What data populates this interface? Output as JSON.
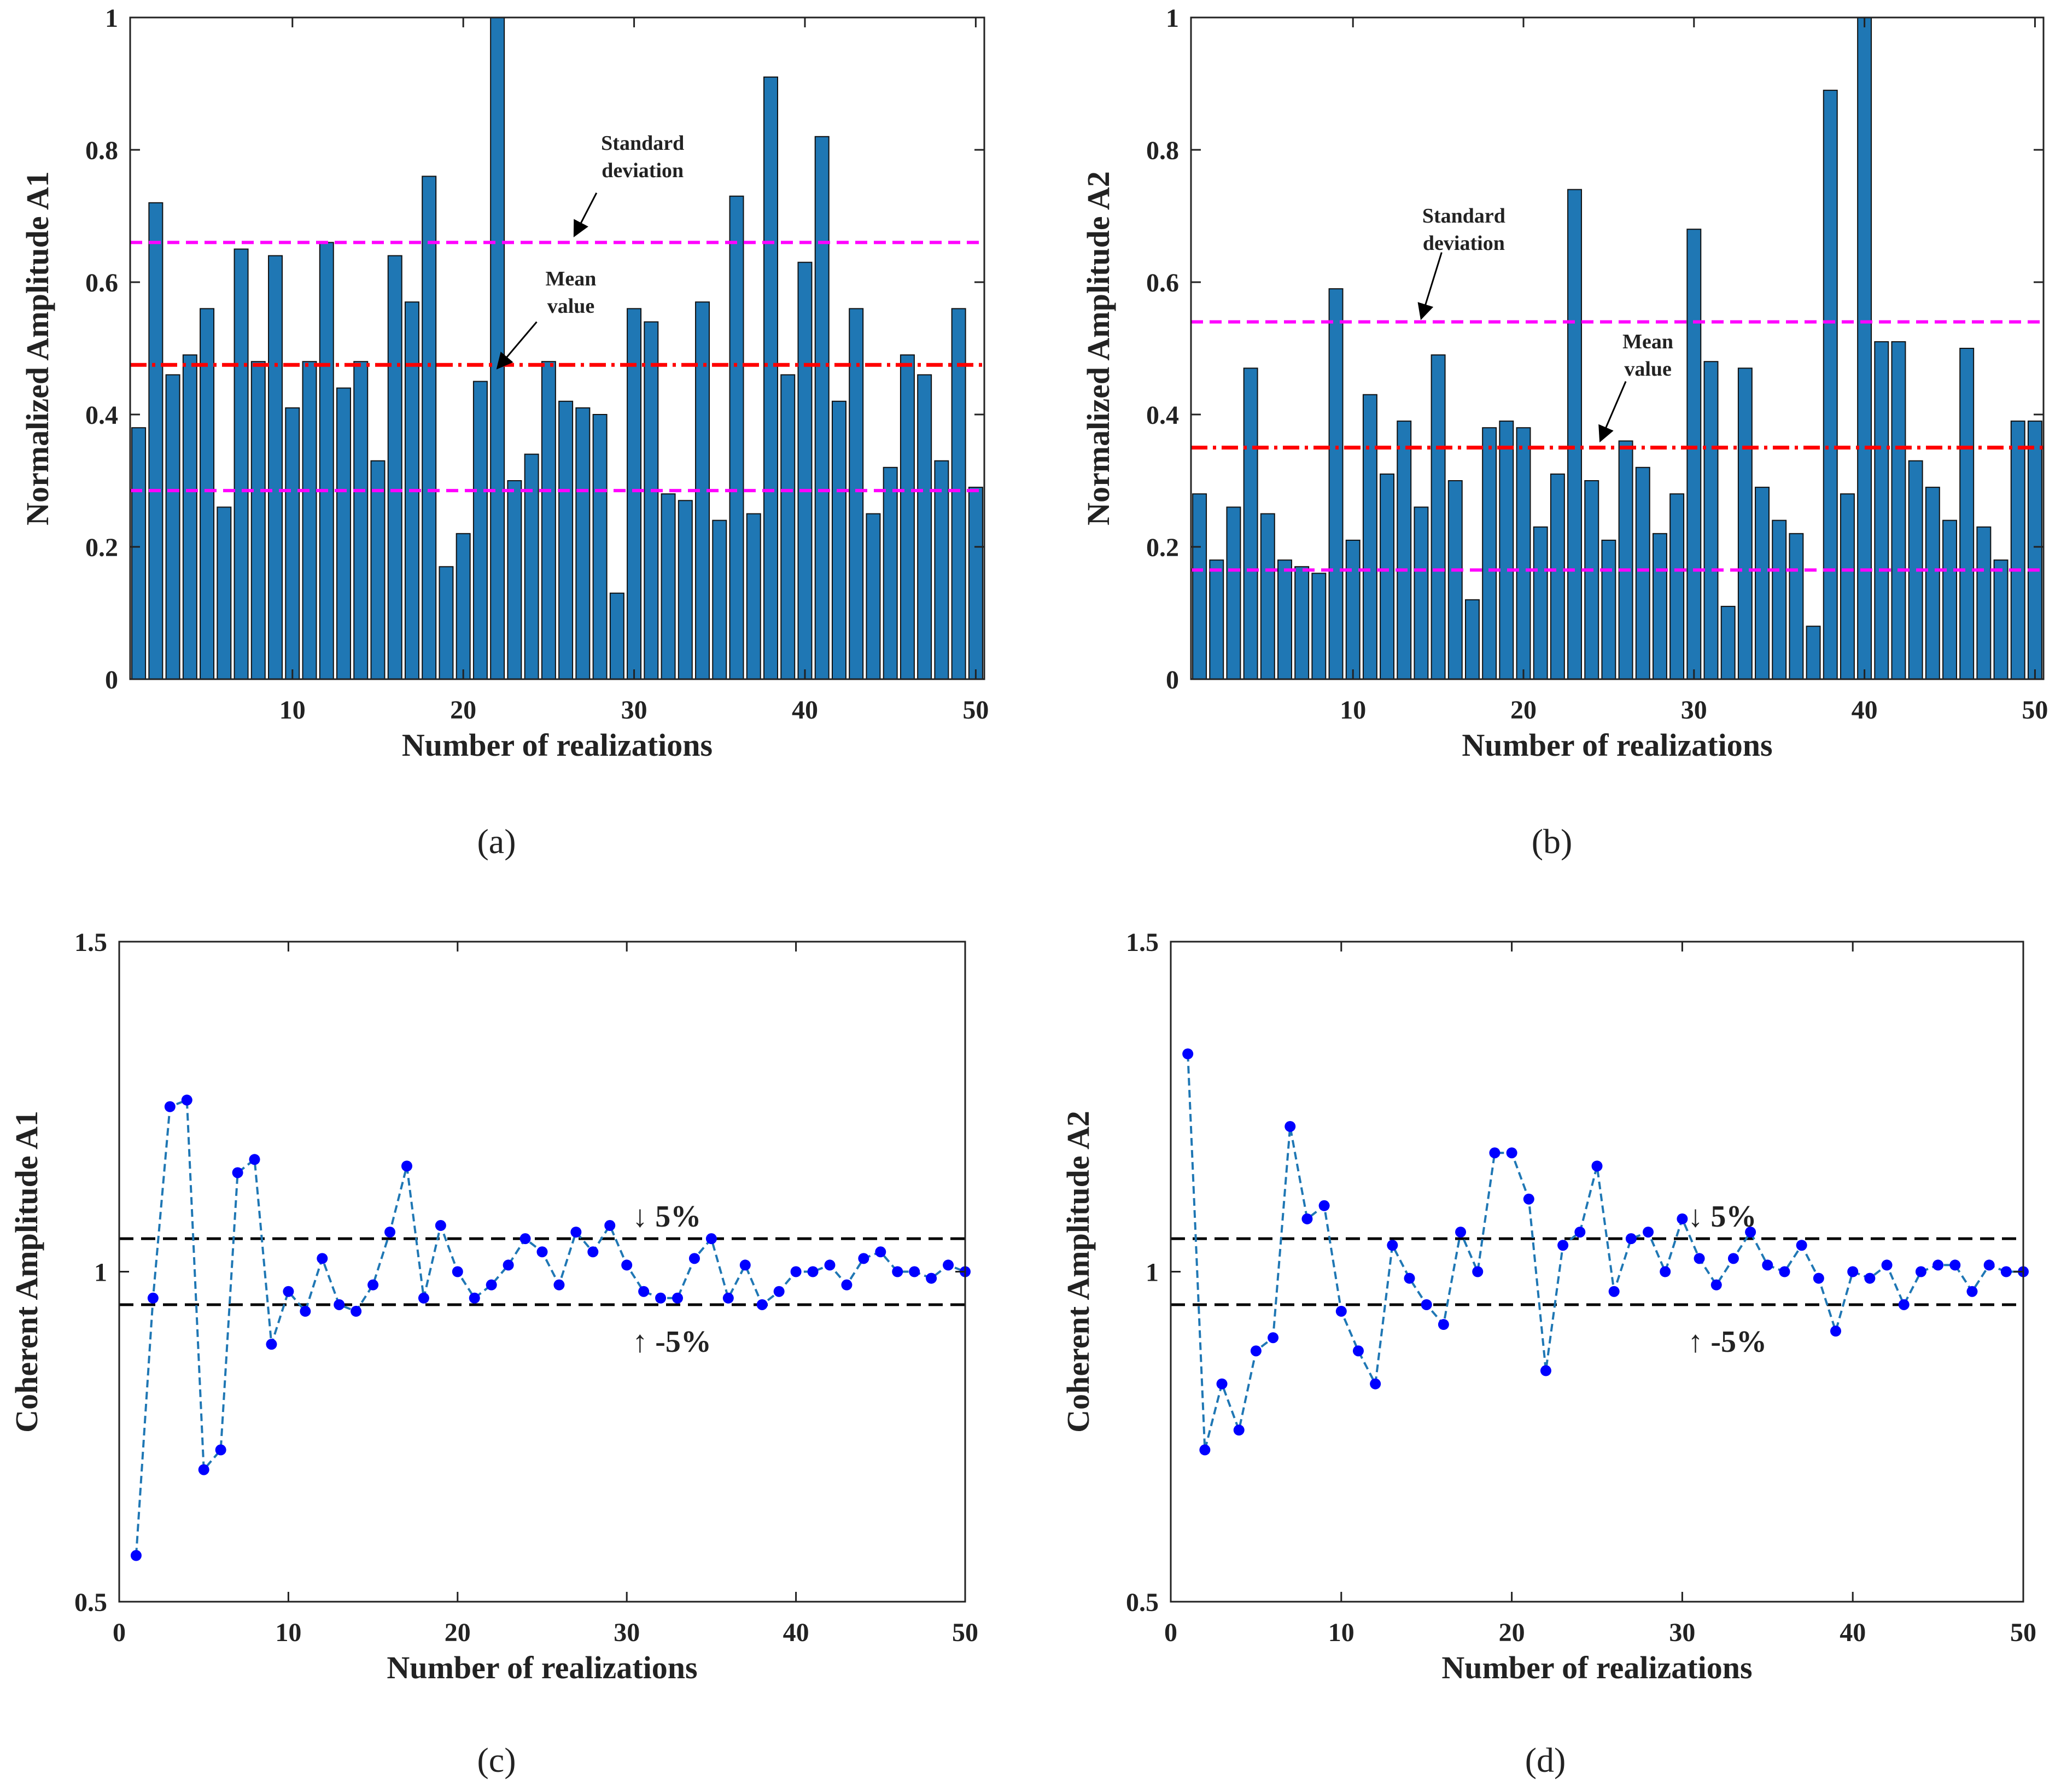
{
  "colors": {
    "bar": "#1f77b4",
    "bar_edge": "#111111",
    "mean_line": "#ff0000",
    "std_line": "#ff00ff",
    "conv_line": "#1f77b4",
    "conv_marker": "#0000ff",
    "band_line": "#000000"
  },
  "chart_data": [
    {
      "id": "a",
      "type": "bar",
      "caption": "(a)",
      "xlabel": "Number of realizations",
      "ylabel": "Normalized Amplitude A1",
      "xlim": [
        0.5,
        50.5
      ],
      "ylim": [
        0,
        1
      ],
      "xticks": [
        10,
        20,
        30,
        40,
        50
      ],
      "yticks": [
        0,
        0.2,
        0.4,
        0.6,
        0.8,
        1
      ],
      "ytick_labels": [
        "0",
        "0.2",
        "0.4",
        "0.6",
        "0.8",
        "1"
      ],
      "x": [
        1,
        2,
        3,
        4,
        5,
        6,
        7,
        8,
        9,
        10,
        11,
        12,
        13,
        14,
        15,
        16,
        17,
        18,
        19,
        20,
        21,
        22,
        23,
        24,
        25,
        26,
        27,
        28,
        29,
        30,
        31,
        32,
        33,
        34,
        35,
        36,
        37,
        38,
        39,
        40,
        41,
        42,
        43,
        44,
        45,
        46,
        47,
        48,
        49,
        50
      ],
      "values": [
        0.38,
        0.72,
        0.46,
        0.49,
        0.56,
        0.26,
        0.65,
        0.48,
        0.64,
        0.41,
        0.48,
        0.66,
        0.44,
        0.48,
        0.33,
        0.64,
        0.57,
        0.76,
        0.17,
        0.22,
        0.45,
        1.0,
        0.3,
        0.34,
        0.48,
        0.42,
        0.41,
        0.4,
        0.13,
        0.56,
        0.54,
        0.28,
        0.27,
        0.57,
        0.24,
        0.73,
        0.25,
        0.91,
        0.46,
        0.63,
        0.82,
        0.42,
        0.56,
        0.25,
        0.32,
        0.49,
        0.46,
        0.33,
        0.56,
        0.29
      ],
      "mean": 0.475,
      "std_upper": 0.66,
      "std_lower": 0.285,
      "annotations": [
        {
          "lines": [
            "Standard",
            "deviation"
          ],
          "points_to": [
            26.5,
            0.67
          ]
        },
        {
          "lines": [
            "Mean",
            "value"
          ],
          "points_to": [
            22.0,
            0.47
          ]
        }
      ]
    },
    {
      "id": "b",
      "type": "bar",
      "caption": "(b)",
      "xlabel": "Number of realizations",
      "ylabel": "Normalized Amplitude A2",
      "xlim": [
        0.5,
        50.5
      ],
      "ylim": [
        0,
        1
      ],
      "xticks": [
        10,
        20,
        30,
        40,
        50
      ],
      "yticks": [
        0,
        0.2,
        0.4,
        0.6,
        0.8,
        1
      ],
      "ytick_labels": [
        "0",
        "0.2",
        "0.4",
        "0.6",
        "0.8",
        "1"
      ],
      "x": [
        1,
        2,
        3,
        4,
        5,
        6,
        7,
        8,
        9,
        10,
        11,
        12,
        13,
        14,
        15,
        16,
        17,
        18,
        19,
        20,
        21,
        22,
        23,
        24,
        25,
        26,
        27,
        28,
        29,
        30,
        31,
        32,
        33,
        34,
        35,
        36,
        37,
        38,
        39,
        40,
        41,
        42,
        43,
        44,
        45,
        46,
        47,
        48,
        49,
        50
      ],
      "values": [
        0.28,
        0.18,
        0.26,
        0.47,
        0.25,
        0.18,
        0.17,
        0.16,
        0.59,
        0.21,
        0.43,
        0.31,
        0.39,
        0.26,
        0.49,
        0.3,
        0.12,
        0.38,
        0.39,
        0.38,
        0.23,
        0.31,
        0.74,
        0.3,
        0.21,
        0.36,
        0.32,
        0.22,
        0.28,
        0.68,
        0.48,
        0.11,
        0.47,
        0.29,
        0.24,
        0.22,
        0.08,
        0.89,
        0.28,
        1.0,
        0.51,
        0.51,
        0.33,
        0.29,
        0.24,
        0.5,
        0.23,
        0.18,
        0.39,
        0.39
      ],
      "mean": 0.35,
      "std_upper": 0.54,
      "std_lower": 0.165,
      "annotations": [
        {
          "lines": [
            "Standard",
            "deviation"
          ],
          "points_to": [
            14.0,
            0.545
          ]
        },
        {
          "lines": [
            "Mean",
            "value"
          ],
          "points_to": [
            24.5,
            0.36
          ]
        }
      ]
    },
    {
      "id": "c",
      "type": "line",
      "caption": "(c)",
      "xlabel": "Number of realizations",
      "ylabel": "Coherent Amplitude A1",
      "xlim": [
        0,
        50
      ],
      "ylim": [
        0.5,
        1.5
      ],
      "xticks": [
        0,
        10,
        20,
        30,
        40,
        50
      ],
      "yticks": [
        0.5,
        1,
        1.5
      ],
      "ytick_labels": [
        "0.5",
        "1",
        "1.5"
      ],
      "x": [
        1,
        2,
        3,
        4,
        5,
        6,
        7,
        8,
        9,
        10,
        11,
        12,
        13,
        14,
        15,
        16,
        17,
        18,
        19,
        20,
        21,
        22,
        23,
        24,
        25,
        26,
        27,
        28,
        29,
        30,
        31,
        32,
        33,
        34,
        35,
        36,
        37,
        38,
        39,
        40,
        41,
        42,
        43,
        44,
        45,
        46,
        47,
        48,
        49,
        50
      ],
      "values": [
        0.57,
        0.96,
        1.25,
        1.26,
        0.7,
        0.73,
        1.15,
        1.17,
        0.89,
        0.97,
        0.94,
        1.02,
        0.95,
        0.94,
        0.98,
        1.06,
        1.16,
        0.96,
        1.07,
        1.0,
        0.96,
        0.98,
        1.01,
        1.05,
        1.03,
        0.98,
        1.06,
        1.03,
        1.07,
        1.01,
        0.97,
        0.96,
        0.96,
        1.02,
        1.05,
        0.96,
        1.01,
        0.95,
        0.97,
        1.0,
        1.0,
        1.01,
        0.98,
        1.02,
        1.03,
        1.0,
        1.0,
        0.99,
        1.01,
        1.0
      ],
      "band_upper": 1.05,
      "band_lower": 0.95,
      "band_labels": {
        "upper": "↓ 5%",
        "lower": "↑ -5%"
      },
      "band_label_x": 30.0
    },
    {
      "id": "d",
      "type": "line",
      "caption": "(d)",
      "xlabel": "Number of realizations",
      "ylabel": "Coherent Amplitude A2",
      "xlim": [
        0,
        50
      ],
      "ylim": [
        0.5,
        1.5
      ],
      "xticks": [
        0,
        10,
        20,
        30,
        40,
        50
      ],
      "yticks": [
        0.5,
        1,
        1.5
      ],
      "ytick_labels": [
        "0.5",
        "1",
        "1.5"
      ],
      "x": [
        1,
        2,
        3,
        4,
        5,
        6,
        7,
        8,
        9,
        10,
        11,
        12,
        13,
        14,
        15,
        16,
        17,
        18,
        19,
        20,
        21,
        22,
        23,
        24,
        25,
        26,
        27,
        28,
        29,
        30,
        31,
        32,
        33,
        34,
        35,
        36,
        37,
        38,
        39,
        40,
        41,
        42,
        43,
        44,
        45,
        46,
        47,
        48,
        49,
        50
      ],
      "values": [
        1.33,
        0.73,
        0.83,
        0.76,
        0.88,
        0.9,
        1.22,
        1.08,
        1.1,
        0.94,
        0.88,
        0.83,
        1.04,
        0.99,
        0.95,
        0.92,
        1.06,
        1.0,
        1.18,
        1.18,
        1.11,
        0.85,
        1.04,
        1.06,
        1.16,
        0.97,
        1.05,
        1.06,
        1.0,
        1.08,
        1.02,
        0.98,
        1.02,
        1.06,
        1.01,
        1.0,
        1.04,
        0.99,
        0.91,
        1.0,
        0.99,
        1.01,
        0.95,
        1.0,
        1.01,
        1.01,
        0.97,
        1.01,
        1.0,
        1.0
      ],
      "band_upper": 1.05,
      "band_lower": 0.95,
      "band_labels": {
        "upper": "↓ 5%",
        "lower": "↑ -5%"
      },
      "band_label_x": 30.0
    }
  ]
}
